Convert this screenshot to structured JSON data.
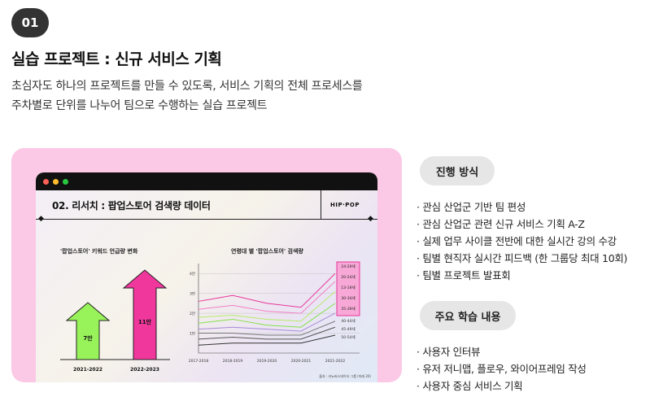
{
  "badge": "01",
  "title": "실습 프로젝트 : 신규 서비스 기획",
  "description": [
    "초심자도 하나의 프로젝트를 만들 수 있도록, 서비스 기획의 전체 프로세스를",
    "주차별로 단위를 나누어 팀으로 수행하는 실습 프로젝트"
  ],
  "slide": {
    "title": "02. 리서치 :  팝업스토어 검색량 데이터",
    "brand": "HIP·POP",
    "source": "출처 : 리뉴버스데이터 그룹 (미래 20)"
  },
  "colors": {
    "card_bg": "#fbc8e6",
    "arrow_green": "#98f25a",
    "arrow_pink": "#f0379c",
    "pill_bg": "#e6e6e6"
  },
  "chart_data": [
    {
      "type": "bar",
      "title": "'팝업스토어' 키워드 언급량 변화",
      "categories": [
        "2021-2022",
        "2022-2023"
      ],
      "series": [
        {
          "values": [
            7,
            11
          ]
        }
      ],
      "data_labels": [
        "7만",
        "11만"
      ]
    },
    {
      "type": "line",
      "title": "연령대 별 '팝업스토어' 검색량",
      "x": [
        "2017-2018",
        "2018-2019",
        "2019-2020",
        "2020-2021",
        "2021-2022"
      ],
      "y_ticks": [
        "1만",
        "2만",
        "3만",
        "4만"
      ],
      "ylim": [
        0,
        4.5
      ],
      "series": [
        {
          "name": "24-29세",
          "color": "#e8359a",
          "values": [
            2.6,
            2.9,
            2.5,
            2.3,
            4.0
          ]
        },
        {
          "name": "20-24세",
          "color": "#f27fc3",
          "values": [
            2.2,
            2.4,
            2.1,
            2.0,
            3.6
          ]
        },
        {
          "name": "13-19세",
          "color": "#b7eb6b",
          "values": [
            1.8,
            1.9,
            1.7,
            1.6,
            3.1
          ]
        },
        {
          "name": "30-34세",
          "color": "#86e04a",
          "values": [
            1.5,
            1.7,
            1.4,
            1.3,
            2.5
          ]
        },
        {
          "name": "35-39세",
          "color": "#a78bd6",
          "values": [
            1.2,
            1.3,
            1.2,
            1.1,
            2.0
          ]
        },
        {
          "name": "40-44세",
          "color": "#777777",
          "values": [
            1.0,
            1.0,
            0.9,
            0.9,
            1.6
          ]
        },
        {
          "name": "45-49세",
          "color": "#555555",
          "values": [
            0.7,
            0.8,
            0.7,
            0.7,
            1.3
          ]
        },
        {
          "name": "50-54세",
          "color": "#333333",
          "values": [
            0.4,
            0.5,
            0.5,
            0.5,
            0.9
          ]
        }
      ]
    }
  ],
  "process": {
    "label": "진행 방식",
    "items": [
      "관심 산업군 기반 팀 편성",
      "관심 산업군 관련 신규 서비스 기획 A-Z",
      "실제 업무 사이클 전반에 대한 실시간 강의 수강",
      "팀별 현직자 실시간 피드백 (한 그룹당 최대 10회)",
      "팀별 프로젝트 발표회"
    ]
  },
  "topics": {
    "label": "주요 학습 내용",
    "items": [
      "사용자 인터뷰",
      "유저 저니맵, 플로우, 와이어프레임 작성",
      "사용자 중심 서비스 기획"
    ]
  }
}
